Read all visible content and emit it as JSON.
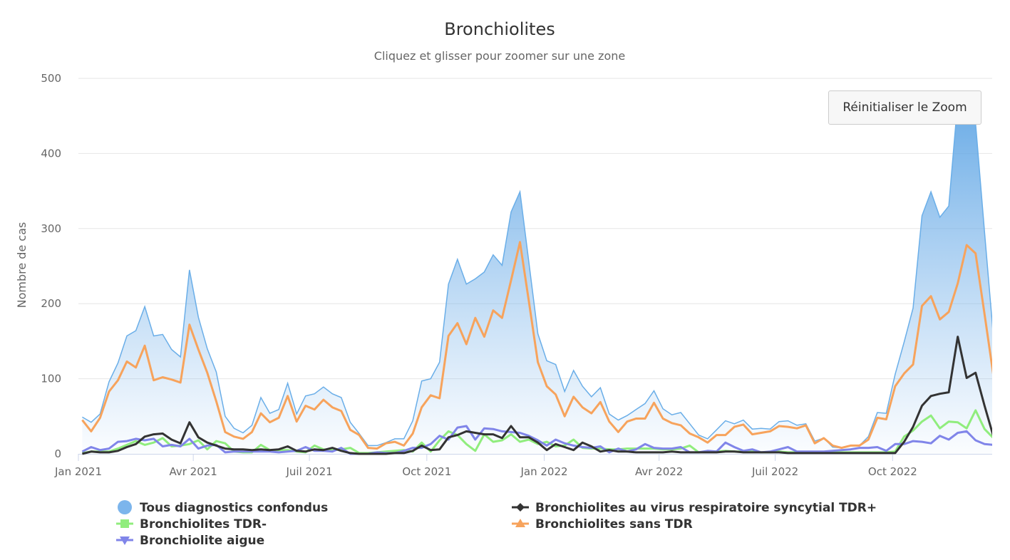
{
  "chart_data": {
    "type": "area+line",
    "title": "Bronchiolites",
    "subtitle": "Cliquez et glisser pour zoomer sur une zone",
    "ylabel": "Nombre de cas",
    "xlabel": "",
    "ylim": [
      0,
      500
    ],
    "yticks": [
      0,
      100,
      200,
      300,
      400,
      500
    ],
    "xlim": [
      "2021-01-01",
      "2022-12-18"
    ],
    "xticks": [
      {
        "date": "2021-01-01",
        "label": "Jan 2021"
      },
      {
        "date": "2021-04-01",
        "label": "Avr 2021"
      },
      {
        "date": "2021-07-01",
        "label": "Juil 2021"
      },
      {
        "date": "2021-10-01",
        "label": "Oct 2021"
      },
      {
        "date": "2022-01-01",
        "label": "Jan 2022"
      },
      {
        "date": "2022-04-01",
        "label": "Avr 2022"
      },
      {
        "date": "2022-07-01",
        "label": "Juil 2022"
      },
      {
        "date": "2022-10-01",
        "label": "Oct 2022"
      }
    ],
    "grid": true,
    "legend_position": "bottom",
    "x_start": "2021-01-04",
    "x_interval": "weekly",
    "series": [
      {
        "name": "Tous diagnostics confondus",
        "type": "area",
        "color": "#7cb5ec",
        "marker": "circle",
        "values": [
          49,
          42,
          53,
          96,
          121,
          157,
          164,
          196,
          157,
          159,
          139,
          129,
          245,
          182,
          140,
          109,
          50,
          34,
          28,
          38,
          75,
          54,
          59,
          94,
          53,
          77,
          80,
          89,
          80,
          75,
          42,
          27,
          11,
          11,
          15,
          20,
          20,
          44,
          97,
          100,
          122,
          226,
          259,
          226,
          233,
          242,
          265,
          251,
          322,
          349,
          255,
          160,
          124,
          119,
          83,
          111,
          90,
          76,
          88,
          53,
          45,
          51,
          59,
          67,
          84,
          60,
          52,
          55,
          40,
          25,
          20,
          32,
          44,
          40,
          45,
          33,
          34,
          33,
          43,
          44,
          38,
          40,
          17,
          21,
          9,
          8,
          11,
          11,
          23,
          55,
          54,
          106,
          149,
          194,
          317,
          349,
          315,
          330,
          470,
          480,
          440,
          295,
          155
        ]
      },
      {
        "name": "Bronchiolites au virus respiratoire syncytial TDR+",
        "type": "line",
        "color": "#333333",
        "marker": "diamond",
        "values": [
          0,
          3,
          2,
          2,
          4,
          9,
          13,
          23,
          26,
          27,
          19,
          14,
          42,
          22,
          15,
          11,
          7,
          6,
          6,
          5,
          6,
          5,
          6,
          10,
          4,
          3,
          6,
          5,
          8,
          4,
          1,
          0,
          0,
          0,
          0,
          1,
          1,
          4,
          11,
          5,
          6,
          22,
          25,
          30,
          28,
          26,
          26,
          21,
          37,
          22,
          22,
          15,
          5,
          13,
          9,
          5,
          15,
          10,
          3,
          5,
          3,
          3,
          2,
          2,
          2,
          2,
          3,
          2,
          2,
          2,
          2,
          2,
          3,
          3,
          2,
          2,
          2,
          2,
          2,
          1,
          1,
          1,
          1,
          1,
          1,
          1,
          1,
          1,
          1,
          1,
          1,
          1,
          16,
          36,
          64,
          77,
          80,
          82,
          156,
          101,
          108,
          64,
          23
        ]
      },
      {
        "name": "Bronchiolites TDR-",
        "type": "line",
        "color": "#90ed7d",
        "marker": "square",
        "values": [
          1,
          3,
          3,
          3,
          7,
          12,
          17,
          12,
          15,
          21,
          10,
          11,
          13,
          18,
          6,
          17,
          14,
          3,
          2,
          2,
          12,
          5,
          5,
          5,
          3,
          2,
          11,
          6,
          5,
          6,
          8,
          1,
          1,
          2,
          3,
          4,
          5,
          3,
          15,
          3,
          18,
          30,
          25,
          13,
          4,
          26,
          16,
          18,
          26,
          16,
          19,
          13,
          16,
          10,
          11,
          19,
          8,
          7,
          7,
          6,
          6,
          7,
          7,
          7,
          7,
          6,
          6,
          7,
          11,
          2,
          3,
          3,
          4,
          3,
          3,
          3,
          2,
          2,
          3,
          2,
          2,
          2,
          2,
          2,
          2,
          2,
          2,
          2,
          2,
          2,
          2,
          3,
          23,
          31,
          43,
          51,
          34,
          43,
          42,
          34,
          58,
          33,
          21
        ]
      },
      {
        "name": "Bronchiolites sans TDR",
        "type": "line",
        "color": "#f7a35c",
        "marker": "triangle",
        "values": [
          45,
          30,
          48,
          83,
          98,
          123,
          115,
          144,
          98,
          102,
          99,
          95,
          172,
          139,
          108,
          70,
          29,
          23,
          20,
          29,
          54,
          42,
          48,
          77,
          43,
          64,
          59,
          72,
          62,
          57,
          32,
          25,
          8,
          7,
          14,
          16,
          11,
          27,
          62,
          78,
          74,
          157,
          174,
          146,
          181,
          156,
          191,
          181,
          231,
          282,
          203,
          122,
          90,
          79,
          50,
          76,
          62,
          54,
          69,
          43,
          29,
          43,
          47,
          47,
          68,
          47,
          41,
          38,
          27,
          22,
          15,
          25,
          25,
          36,
          39,
          26,
          28,
          30,
          37,
          36,
          34,
          38,
          14,
          21,
          11,
          8,
          11,
          11,
          19,
          48,
          46,
          90,
          107,
          119,
          197,
          210,
          179,
          189,
          227,
          278,
          267,
          186,
          104
        ]
      },
      {
        "name": "Bronchiolite aigue",
        "type": "line",
        "color": "#8085e9",
        "marker": "triangle-down",
        "values": [
          3,
          9,
          5,
          7,
          16,
          17,
          20,
          18,
          20,
          10,
          12,
          10,
          20,
          7,
          11,
          12,
          2,
          3,
          3,
          3,
          3,
          3,
          2,
          3,
          4,
          9,
          4,
          4,
          3,
          8,
          0,
          0,
          0,
          2,
          1,
          1,
          4,
          8,
          8,
          13,
          24,
          19,
          35,
          37,
          19,
          34,
          33,
          30,
          29,
          28,
          24,
          18,
          11,
          19,
          14,
          11,
          9,
          8,
          10,
          2,
          7,
          3,
          6,
          13,
          8,
          7,
          7,
          9,
          2,
          2,
          4,
          3,
          15,
          9,
          4,
          6,
          2,
          3,
          6,
          9,
          3,
          3,
          3,
          3,
          4,
          5,
          6,
          8,
          8,
          9,
          4,
          13,
          13,
          17,
          16,
          14,
          24,
          19,
          28,
          30,
          18,
          13,
          12
        ]
      }
    ]
  },
  "controls": {
    "reset_zoom_label": "Réinitialiser le Zoom"
  }
}
